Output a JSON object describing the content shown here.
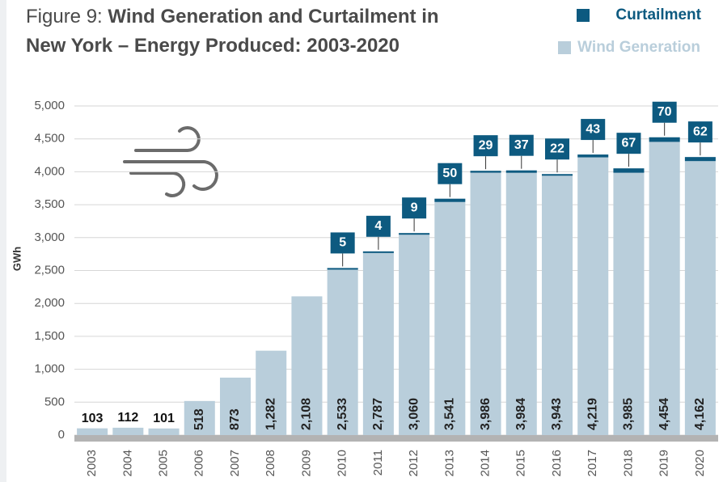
{
  "chart_data": {
    "type": "stacked_bar",
    "title_label": "Figure 9:",
    "title": "Wind Generation and Curtailment in New York – Energy Produced: 2003-2020",
    "ylabel": "GWh",
    "categories": [
      "2003",
      "2004",
      "2005",
      "2006",
      "2007",
      "2008",
      "2009",
      "2010",
      "2011",
      "2012",
      "2013",
      "2014",
      "2015",
      "2016",
      "2017",
      "2018",
      "2019",
      "2020"
    ],
    "series": [
      {
        "name": "Wind Generation",
        "color": "#b9cedb",
        "values": [
          103,
          112,
          101,
          518,
          873,
          1282,
          2108,
          2533,
          2787,
          3060,
          3541,
          3986,
          3984,
          3943,
          4219,
          3985,
          4454,
          4162
        ],
        "value_labels": [
          "103",
          "112",
          "101",
          "518",
          "873",
          "1,282",
          "2,108",
          "2,533",
          "2,787",
          "3,060",
          "3,541",
          "3,986",
          "3,984",
          "3,943",
          "4,219",
          "3,985",
          "4,454",
          "4,162"
        ]
      },
      {
        "name": "Curtailment",
        "color": "#0d5a80",
        "values": [
          null,
          null,
          null,
          null,
          null,
          null,
          null,
          5,
          4,
          9,
          50,
          29,
          37,
          22,
          43,
          67,
          70,
          62
        ]
      }
    ],
    "ylim": [
      0,
      5000
    ],
    "yticks": [
      0,
      500,
      {
        "value": 1000,
        "label": "1,000"
      },
      {
        "value": 1500,
        "label": "1,500"
      },
      {
        "value": 2000,
        "label": "2,000"
      },
      {
        "value": 2500,
        "label": "2,500"
      },
      {
        "value": 3000,
        "label": "3,000"
      },
      {
        "value": 3500,
        "label": "3,500"
      },
      {
        "value": 4000,
        "label": "4,000"
      },
      {
        "value": 4500,
        "label": "4,500"
      },
      {
        "value": 5000,
        "label": "5,000"
      }
    ],
    "grid": true,
    "legend": "top-right"
  }
}
